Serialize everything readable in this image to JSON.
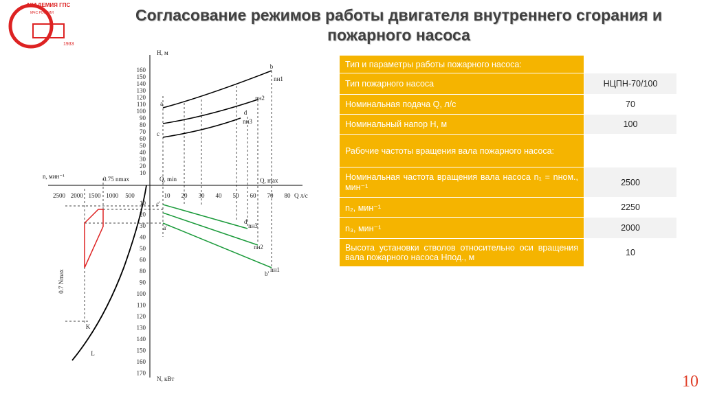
{
  "logo": {
    "name": "АКАДЕМИЯ ГПС",
    "org": "МЧС РОССИИ",
    "year": "1933"
  },
  "header": {
    "title": "Согласование режимов работы двигателя внутреннего сгорания и пожарного насоса"
  },
  "diagram": {
    "h_ticks": [
      "10",
      "20",
      "30",
      "40",
      "50",
      "60",
      "70",
      "80",
      "90",
      "100",
      "110",
      "120",
      "130",
      "140",
      "150",
      "160"
    ],
    "q_ticks": [
      "10",
      "20",
      "30",
      "40",
      "50",
      "60",
      "70",
      "80"
    ],
    "n_ticks": [
      "2500",
      "2000",
      "1500",
      "1000",
      "500"
    ],
    "p_ticks": [
      "10",
      "20",
      "30",
      "40",
      "50",
      "60",
      "80",
      "90",
      "100",
      "110",
      "120",
      "130",
      "140",
      "150",
      "160",
      "170"
    ],
    "labels": [
      "Н, м",
      "n, мин⁻¹",
      "0.75 nmax",
      "Q, min",
      "Q, max",
      "Q л/с",
      "0.7 Nmax",
      "K",
      "L",
      "N, кВт",
      "a",
      "b",
      "c",
      "d",
      "c'",
      "d'",
      "a'",
      "b'",
      "nн1",
      "nн2",
      "nн3",
      "nн3",
      "nн2",
      "nн1"
    ]
  },
  "table": {
    "rows": [
      [
        "Тип и параметры работы пожарного насоса:"
      ],
      [
        "Тип пожарного насоса",
        "НЦПН-70/100"
      ],
      [
        "Номинальная подача Q, л/с",
        "70"
      ],
      [
        "Номинальный напор Н, м",
        "100"
      ],
      [
        "Рабочие частоты вращения вала пожарного насоса:"
      ],
      [
        "Номинальная частота вращения вала насоса n₁ = nном., мин⁻¹",
        "2500"
      ],
      [
        "n₂, мин⁻¹",
        "2250"
      ],
      [
        "n₃, мин⁻¹",
        "2000"
      ],
      [
        "Высота установки стволов относительно оси вращения вала пожарного насоса Нпод., м",
        "10"
      ]
    ]
  },
  "page_number": "10"
}
